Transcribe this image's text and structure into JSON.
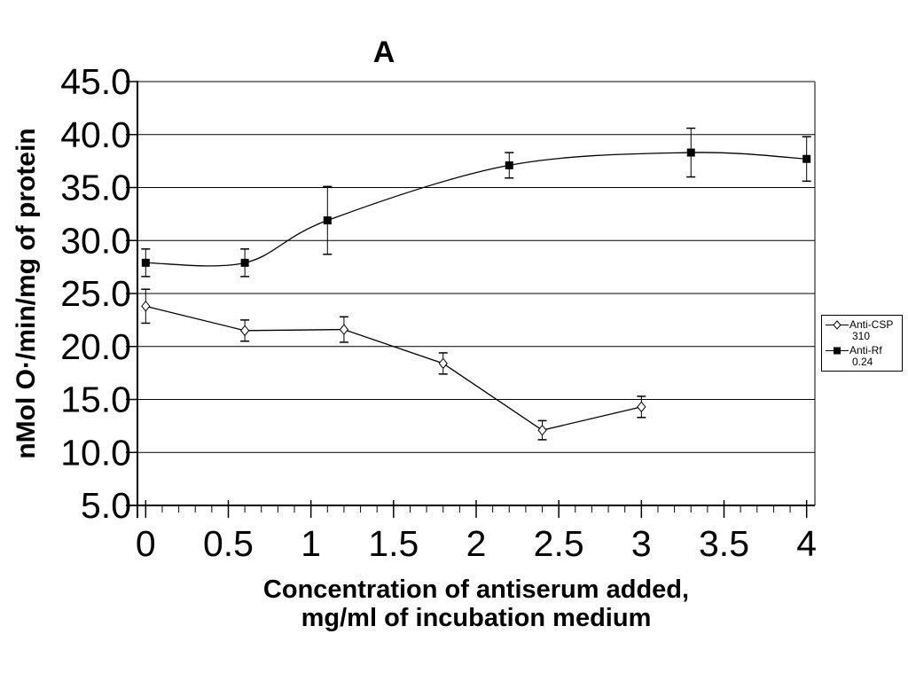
{
  "chart_data": {
    "type": "line",
    "title": "A",
    "xlabel": "Concentration of antiserum added, mg/ml of incubation medium",
    "xlabel_lines": [
      "Concentration of antiserum added,",
      "mg/ml of incubation medium"
    ],
    "ylabel": "nMol O·/min/mg of protein",
    "xlim": [
      -0.05,
      4.05
    ],
    "ylim": [
      5,
      45
    ],
    "grid": true,
    "legend_position": "right",
    "x_ticks": [
      {
        "v": 0,
        "label": "0"
      },
      {
        "v": 0.5,
        "label": "0.5"
      },
      {
        "v": 1,
        "label": "1"
      },
      {
        "v": 1.5,
        "label": "1.5"
      },
      {
        "v": 2,
        "label": "2"
      },
      {
        "v": 2.5,
        "label": "2.5"
      },
      {
        "v": 3,
        "label": "3"
      },
      {
        "v": 3.5,
        "label": "3.5"
      },
      {
        "v": 4,
        "label": "4"
      }
    ],
    "x_minor_tick_step": 0.1,
    "y_ticks": [
      {
        "v": 5,
        "label": "5.0"
      },
      {
        "v": 10,
        "label": "10.0"
      },
      {
        "v": 15,
        "label": "15.0"
      },
      {
        "v": 20,
        "label": "20.0"
      },
      {
        "v": 25,
        "label": "25.0"
      },
      {
        "v": 30,
        "label": "30.0"
      },
      {
        "v": 35,
        "label": "35.0"
      },
      {
        "v": 40,
        "label": "40.0"
      },
      {
        "v": 45,
        "label": "45.0"
      }
    ],
    "series": [
      {
        "name": "Anti-CSP 310",
        "legend_lines": [
          "Anti-CSP",
          "310"
        ],
        "marker": "open-diamond",
        "smoothed": false,
        "color": "#000000",
        "points": [
          {
            "x": 0,
            "y": 23.8,
            "err": 1.6
          },
          {
            "x": 0.6,
            "y": 21.5,
            "err": 1.0
          },
          {
            "x": 1.2,
            "y": 21.6,
            "err": 1.2
          },
          {
            "x": 1.8,
            "y": 18.4,
            "err": 1.0
          },
          {
            "x": 2.4,
            "y": 12.1,
            "err": 0.9
          },
          {
            "x": 3.0,
            "y": 14.3,
            "err": 1.0
          }
        ]
      },
      {
        "name": "Anti-Rf 0.24",
        "legend_lines": [
          "Anti-Rf",
          "0.24"
        ],
        "marker": "filled-square",
        "smoothed": true,
        "color": "#000000",
        "points": [
          {
            "x": 0,
            "y": 27.9,
            "err": 1.3
          },
          {
            "x": 0.6,
            "y": 27.9,
            "err": 1.3
          },
          {
            "x": 1.1,
            "y": 31.9,
            "err": 3.2
          },
          {
            "x": 2.2,
            "y": 37.1,
            "err": 1.2
          },
          {
            "x": 3.3,
            "y": 38.3,
            "err": 2.3
          },
          {
            "x": 4.0,
            "y": 37.7,
            "err": 2.1
          }
        ]
      }
    ],
    "colors": {
      "axis": "#000000",
      "grid": "#000000",
      "border": "#808080",
      "background": "#ffffff"
    }
  }
}
